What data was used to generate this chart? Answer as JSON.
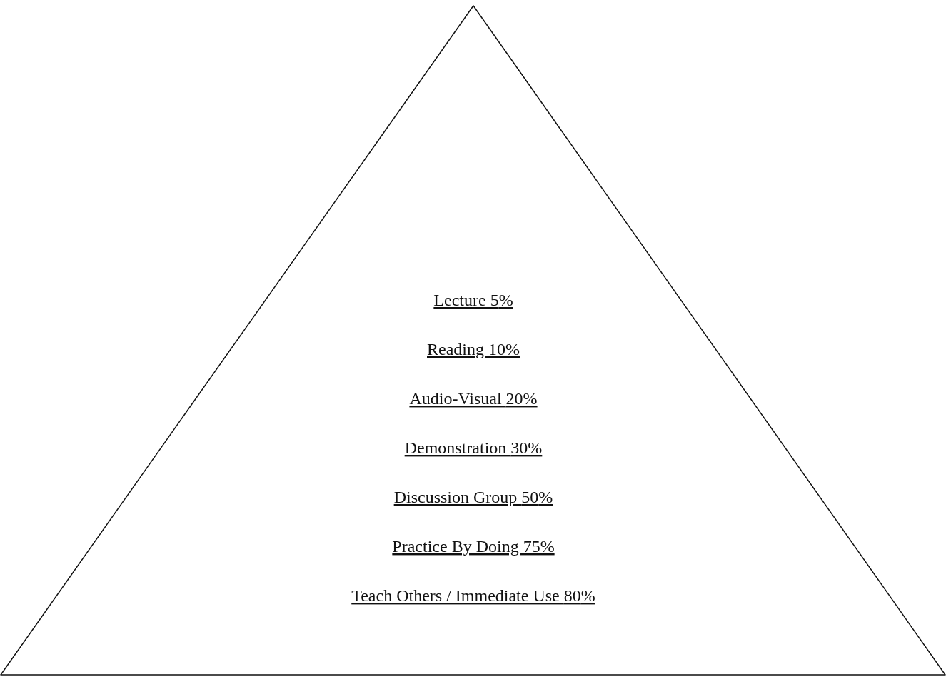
{
  "chart_data": {
    "type": "other",
    "categories": [
      "Lecture",
      "Reading",
      "Audio-Visual",
      "Demonstration",
      "Discussion Group",
      "Practice By Doing",
      "Teach Others / Immediate Use"
    ],
    "values": [
      5,
      10,
      20,
      30,
      50,
      75,
      80
    ],
    "value_labels": [
      "5%",
      "10%",
      "20%",
      "30%",
      "50%",
      "75%",
      "80%"
    ]
  }
}
